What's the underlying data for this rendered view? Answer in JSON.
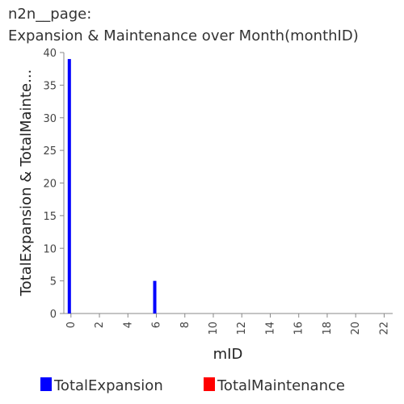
{
  "chart_data": {
    "type": "bar",
    "title_lines": [
      "n2n__page:",
      "Expansion & Maintenance over Month(monthID)"
    ],
    "xlabel": "mID",
    "ylabel": "TotalExpansion & TotalMainte...",
    "xlim": [
      -0.5,
      22.6
    ],
    "ylim": [
      0,
      40
    ],
    "x_ticks": [
      0,
      2,
      4,
      6,
      8,
      10,
      12,
      14,
      16,
      18,
      20,
      22
    ],
    "y_ticks": [
      0,
      5,
      10,
      15,
      20,
      25,
      30,
      35,
      40
    ],
    "x": [
      0,
      6
    ],
    "series": [
      {
        "name": "TotalExpansion",
        "color": "#0000ff",
        "values": [
          39,
          5
        ]
      },
      {
        "name": "TotalMaintenance",
        "color": "#ff0000",
        "values": [
          0,
          0
        ]
      }
    ],
    "grid": false,
    "legend_position": "bottom"
  }
}
